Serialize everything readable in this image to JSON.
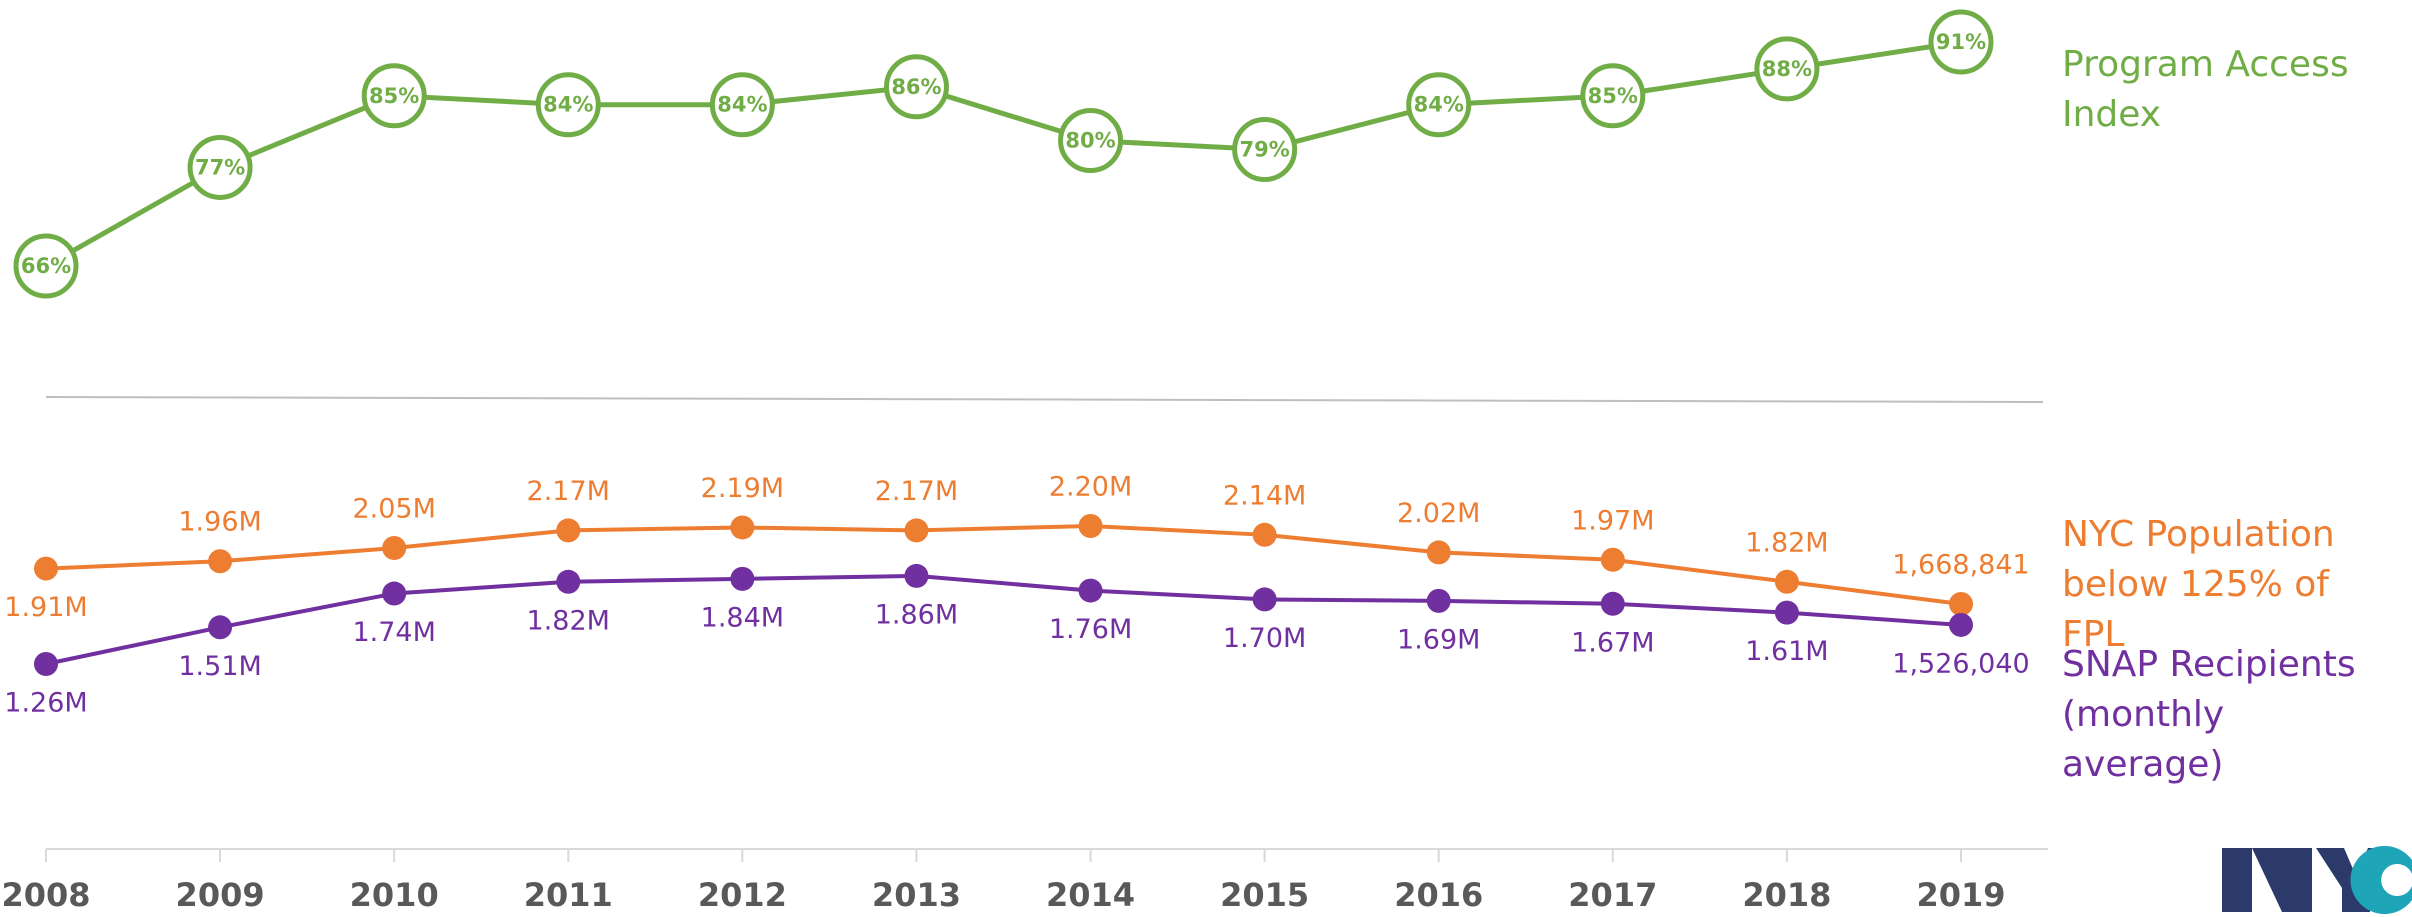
{
  "chart_data": {
    "type": "line",
    "categories": [
      "2008",
      "2009",
      "2010",
      "2011",
      "2012",
      "2013",
      "2014",
      "2015",
      "2016",
      "2017",
      "2018",
      "2019"
    ],
    "series": [
      {
        "name": "Program Access Index",
        "color": "#70ad47",
        "axis": "y2",
        "values": [
          66,
          77,
          85,
          84,
          84,
          86,
          80,
          79,
          84,
          85,
          88,
          91
        ],
        "value_labels": [
          "66%",
          "77%",
          "85%",
          "84%",
          "84%",
          "86%",
          "80%",
          "79%",
          "84%",
          "85%",
          "88%",
          "91%"
        ]
      },
      {
        "name": "NYC Population below 125% of FPL",
        "color": "#ed7d31",
        "values": [
          1910000,
          1960000,
          2050000,
          2170000,
          2190000,
          2170000,
          2200000,
          2140000,
          2020000,
          1970000,
          1820000,
          1668841
        ],
        "value_labels": [
          "1.91M",
          "1.96M",
          "2.05M",
          "2.17M",
          "2.19M",
          "2.17M",
          "2.20M",
          "2.14M",
          "2.02M",
          "1.97M",
          "1.82M",
          "1,668,841"
        ]
      },
      {
        "name": "SNAP Recipients (monthly average)",
        "color": "#7030a0",
        "values": [
          1260000,
          1510000,
          1740000,
          1820000,
          1840000,
          1860000,
          1760000,
          1700000,
          1690000,
          1670000,
          1610000,
          1526040
        ],
        "value_labels": [
          "1.26M",
          "1.51M",
          "1.74M",
          "1.82M",
          "1.84M",
          "1.86M",
          "1.76M",
          "1.70M",
          "1.69M",
          "1.67M",
          "1.61M",
          "1,526,040"
        ]
      }
    ]
  }
}
